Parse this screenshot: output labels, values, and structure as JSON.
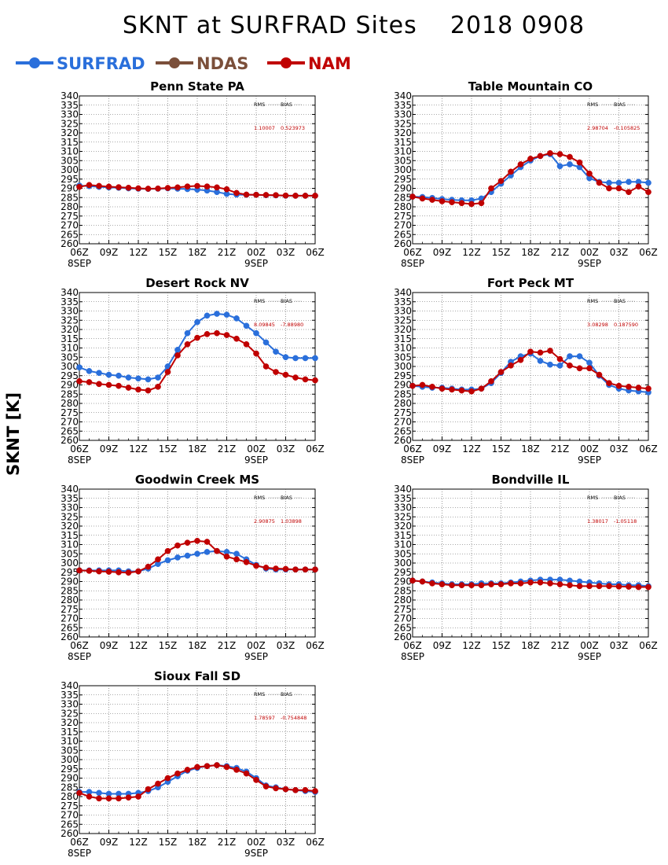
{
  "chart_data": {
    "type": "line",
    "title": "SKNT at SURFRAD Sites    2018 0908",
    "ylabel": "SKNT [K]",
    "ylim": [
      260,
      340
    ],
    "yticks": [
      260,
      265,
      270,
      275,
      280,
      285,
      290,
      295,
      300,
      305,
      310,
      315,
      320,
      325,
      330,
      335,
      340
    ],
    "grid": true,
    "legend_placement": "top-left",
    "x_tick_labels": [
      "06Z",
      "09Z",
      "12Z",
      "15Z",
      "18Z",
      "21Z",
      "00Z",
      "03Z",
      "06Z"
    ],
    "x_date_labels": [
      {
        "at": "06Z",
        "text": "8SEP"
      },
      {
        "at": "00Z",
        "text": "9SEP"
      }
    ],
    "x_hours": [
      6,
      7,
      8,
      9,
      10,
      11,
      12,
      13,
      14,
      15,
      16,
      17,
      18,
      19,
      20,
      21,
      22,
      23,
      24,
      25,
      26,
      27,
      28,
      29,
      30
    ],
    "legend": [
      {
        "name": "SURFRAD",
        "color": "#2a6fdb"
      },
      {
        "name": "NDAS",
        "color": "#7b4f3a"
      },
      {
        "name": "NAM",
        "color": "#c00000"
      }
    ],
    "stats_labels": {
      "rms": "RMS",
      "bias": "BIAS"
    },
    "panels": [
      {
        "name": "Penn State PA",
        "rms": "1.10007",
        "bias": "0.523973",
        "series": [
          {
            "name": "SURFRAD",
            "color": "#2a6fdb",
            "values": [
              291.5,
              291.2,
              290.8,
              290.5,
              290.3,
              290.0,
              289.8,
              289.7,
              289.8,
              290.0,
              289.8,
              289.6,
              289.3,
              288.8,
              288.0,
              287.0,
              286.6,
              286.5,
              286.5,
              286.3,
              286.2,
              286.0,
              286.0,
              286.0,
              286.0
            ]
          },
          {
            "name": "NAM",
            "color": "#c00000",
            "values": [
              290.8,
              291.8,
              291.3,
              290.9,
              290.6,
              290.3,
              290.0,
              289.8,
              289.9,
              290.2,
              290.5,
              291.0,
              291.3,
              291.0,
              290.5,
              289.5,
              287.5,
              286.6,
              286.5,
              286.4,
              286.3,
              286.1,
              286.0,
              286.0,
              286.0
            ]
          }
        ]
      },
      {
        "name": "Table Mountain CO",
        "rms": "2.98704",
        "bias": "-0.105825",
        "series": [
          {
            "name": "SURFRAD",
            "color": "#2a6fdb",
            "values": [
              285.5,
              285.3,
              284.8,
              284.2,
              283.8,
              283.5,
              283.5,
              284.5,
              288.0,
              292.5,
              297.0,
              301.5,
              305.0,
              307.5,
              308.5,
              302.0,
              303.0,
              301.5,
              295.5,
              293.5,
              293.0,
              293.0,
              293.5,
              293.5,
              293.0
            ]
          },
          {
            "name": "NAM",
            "color": "#c00000",
            "values": [
              285.5,
              284.5,
              283.8,
              283.0,
              282.5,
              282.0,
              281.5,
              282.0,
              290.0,
              294.0,
              299.0,
              303.0,
              306.0,
              307.5,
              309.0,
              308.5,
              307.0,
              304.0,
              298.0,
              293.0,
              290.0,
              290.0,
              288.0,
              291.0,
              288.0
            ]
          }
        ]
      },
      {
        "name": "Desert Rock NV",
        "rms": "8.09845",
        "bias": "-7.88980",
        "series": [
          {
            "name": "SURFRAD",
            "color": "#2a6fdb",
            "values": [
              299.5,
              297.5,
              296.5,
              295.5,
              295.0,
              294.0,
              293.5,
              293.0,
              294.0,
              300.0,
              309.0,
              318.0,
              324.0,
              327.5,
              328.5,
              328.0,
              326.0,
              322.0,
              318.0,
              313.0,
              308.0,
              305.0,
              304.5,
              304.5,
              304.5
            ]
          },
          {
            "name": "NAM",
            "color": "#c00000",
            "values": [
              292.0,
              291.5,
              290.5,
              290.0,
              289.5,
              288.5,
              287.5,
              287.0,
              289.0,
              297.0,
              306.0,
              312.0,
              315.5,
              317.5,
              318.0,
              317.0,
              315.0,
              312.0,
              307.0,
              300.0,
              297.0,
              295.5,
              294.0,
              293.0,
              292.5
            ]
          }
        ]
      },
      {
        "name": "Fort Peck MT",
        "rms": "3.08298",
        "bias": "0.187590",
        "series": [
          {
            "name": "SURFRAD",
            "color": "#2a6fdb",
            "values": [
              289.5,
              289.0,
              288.5,
              288.5,
              288.0,
              287.5,
              287.5,
              288.0,
              291.0,
              296.5,
              302.5,
              305.5,
              307.0,
              303.0,
              301.0,
              300.5,
              305.5,
              305.5,
              302.0,
              295.0,
              290.0,
              288.0,
              287.0,
              286.5,
              286.0
            ]
          },
          {
            "name": "NAM",
            "color": "#c00000",
            "values": [
              289.5,
              290.0,
              289.0,
              288.0,
              287.5,
              287.0,
              286.5,
              288.0,
              292.0,
              297.0,
              300.5,
              303.5,
              308.0,
              307.5,
              308.5,
              304.0,
              300.5,
              299.0,
              299.0,
              295.5,
              291.0,
              289.5,
              289.0,
              288.5,
              288.0
            ]
          }
        ]
      },
      {
        "name": "Goodwin Creek MS",
        "rms": "2.90875",
        "bias": "1.03898",
        "series": [
          {
            "name": "SURFRAD",
            "color": "#2a6fdb",
            "values": [
              296.0,
              296.0,
              296.0,
              296.0,
              296.0,
              295.5,
              295.5,
              297.0,
              299.5,
              301.5,
              303.0,
              304.0,
              305.0,
              306.0,
              306.5,
              306.0,
              305.0,
              302.0,
              299.0,
              297.0,
              296.5,
              296.5,
              296.5,
              296.5,
              296.5
            ]
          },
          {
            "name": "NAM",
            "color": "#c00000",
            "values": [
              296.0,
              295.8,
              295.5,
              295.3,
              295.0,
              294.8,
              295.5,
              298.0,
              302.0,
              306.5,
              309.5,
              311.0,
              312.0,
              311.5,
              306.5,
              303.5,
              302.0,
              300.5,
              298.5,
              297.5,
              297.0,
              296.8,
              296.5,
              296.5,
              296.5
            ]
          }
        ]
      },
      {
        "name": "Bondville IL",
        "rms": "1.38017",
        "bias": "-1.05118",
        "series": [
          {
            "name": "SURFRAD",
            "color": "#2a6fdb",
            "values": [
              290.5,
              290.0,
              289.5,
              289.0,
              288.5,
              288.5,
              288.5,
              289.0,
              289.0,
              289.0,
              289.5,
              290.0,
              290.5,
              291.0,
              291.0,
              291.0,
              290.5,
              290.0,
              289.5,
              289.0,
              288.5,
              288.5,
              288.0,
              288.0,
              287.5
            ]
          },
          {
            "name": "NAM",
            "color": "#c00000",
            "values": [
              290.5,
              290.0,
              289.0,
              288.5,
              288.0,
              288.0,
              288.0,
              288.0,
              288.5,
              288.5,
              289.0,
              289.0,
              289.5,
              289.5,
              289.0,
              288.5,
              288.0,
              287.5,
              287.5,
              287.5,
              287.5,
              287.3,
              287.2,
              287.0,
              287.0
            ]
          }
        ]
      },
      {
        "name": "Sioux Fall SD",
        "rms": "1.78597",
        "bias": "-0.754848",
        "series": [
          {
            "name": "SURFRAD",
            "color": "#2a6fdb",
            "values": [
              282.5,
              282.5,
              282.0,
              281.5,
              281.5,
              281.5,
              282.0,
              283.0,
              285.0,
              288.0,
              291.0,
              294.0,
              295.5,
              296.5,
              297.0,
              296.5,
              295.5,
              293.5,
              290.0,
              286.0,
              285.0,
              284.0,
              283.5,
              283.0,
              282.5
            ]
          },
          {
            "name": "NAM",
            "color": "#c00000",
            "values": [
              282.0,
              280.0,
              279.0,
              279.0,
              279.0,
              279.5,
              280.0,
              284.0,
              287.0,
              290.0,
              292.5,
              294.5,
              296.0,
              296.5,
              297.0,
              296.0,
              294.5,
              292.5,
              289.0,
              285.5,
              284.5,
              284.0,
              283.5,
              283.5,
              283.0
            ]
          }
        ]
      }
    ]
  }
}
